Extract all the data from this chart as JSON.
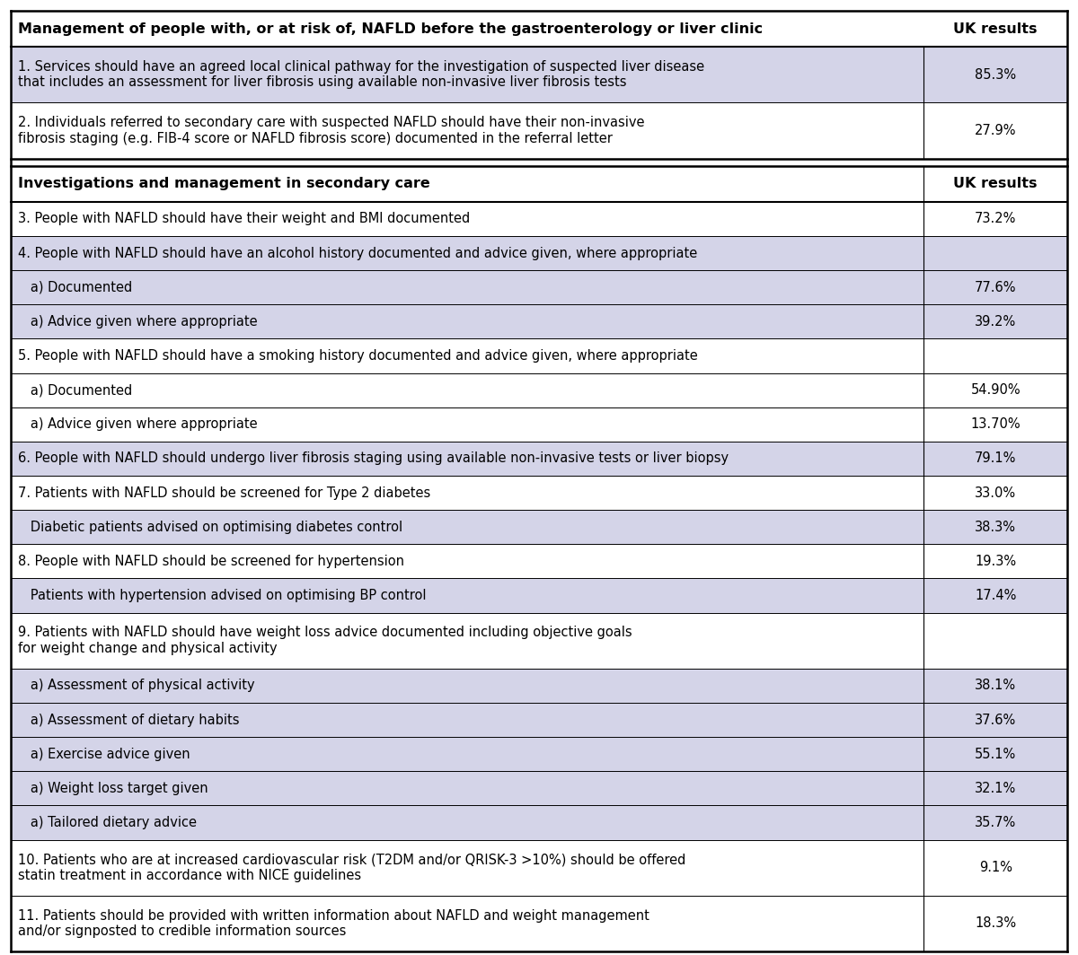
{
  "section1_header": "Management of people with, or at risk of, NAFLD before the gastroenterology or liver clinic",
  "section2_header": "Investigations and management in secondary care",
  "col_header": "UK results",
  "rows": [
    {
      "text": "1. Services should have an agreed local clinical pathway for the investigation of suspected liver disease\nthat includes an assessment for liver fibrosis using available non-invasive liver fibrosis tests",
      "value": "85.3%",
      "shaded": true,
      "lines": 2
    },
    {
      "text": "2. Individuals referred to secondary care with suspected NAFLD should have their non-invasive\nfibrosis staging (e.g. FIB-4 score or NAFLD fibrosis score) documented in the referral letter",
      "value": "27.9%",
      "shaded": false,
      "lines": 2
    },
    {
      "text": "3. People with NAFLD should have their weight and BMI documented",
      "value": "73.2%",
      "shaded": false,
      "lines": 1
    },
    {
      "text": "4. People with NAFLD should have an alcohol history documented and advice given, where appropriate",
      "value": "",
      "shaded": true,
      "lines": 1
    },
    {
      "text": "   a) Documented",
      "value": "77.6%",
      "shaded": true,
      "lines": 1
    },
    {
      "text": "   a) Advice given where appropriate",
      "value": "39.2%",
      "shaded": true,
      "lines": 1
    },
    {
      "text": "5. People with NAFLD should have a smoking history documented and advice given, where appropriate",
      "value": "",
      "shaded": false,
      "lines": 1
    },
    {
      "text": "   a) Documented",
      "value": "54.90%",
      "shaded": false,
      "lines": 1
    },
    {
      "text": "   a) Advice given where appropriate",
      "value": "13.70%",
      "shaded": false,
      "lines": 1
    },
    {
      "text": "6. People with NAFLD should undergo liver fibrosis staging using available non-invasive tests or liver biopsy",
      "value": "79.1%",
      "shaded": true,
      "lines": 1
    },
    {
      "text": "7. Patients with NAFLD should be screened for Type 2 diabetes",
      "value": "33.0%",
      "shaded": false,
      "lines": 1
    },
    {
      "text": "   Diabetic patients advised on optimising diabetes control",
      "value": "38.3%",
      "shaded": true,
      "lines": 1
    },
    {
      "text": "8. People with NAFLD should be screened for hypertension",
      "value": "19.3%",
      "shaded": false,
      "lines": 1
    },
    {
      "text": "   Patients with hypertension advised on optimising BP control",
      "value": "17.4%",
      "shaded": true,
      "lines": 1
    },
    {
      "text": "9. Patients with NAFLD should have weight loss advice documented including objective goals\nfor weight change and physical activity",
      "value": "",
      "shaded": false,
      "lines": 2
    },
    {
      "text": "   a) Assessment of physical activity",
      "value": "38.1%",
      "shaded": true,
      "lines": 1
    },
    {
      "text": "   a) Assessment of dietary habits",
      "value": "37.6%",
      "shaded": true,
      "lines": 1
    },
    {
      "text": "   a) Exercise advice given",
      "value": "55.1%",
      "shaded": true,
      "lines": 1
    },
    {
      "text": "   a) Weight loss target given",
      "value": "32.1%",
      "shaded": true,
      "lines": 1
    },
    {
      "text": "   a) Tailored dietary advice",
      "value": "35.7%",
      "shaded": true,
      "lines": 1
    },
    {
      "text": "10. Patients who are at increased cardiovascular risk (T2DM and/or QRISK-3 >10%) should be offered\nstatin treatment in accordance with NICE guidelines",
      "value": "9.1%",
      "shaded": false,
      "lines": 2
    },
    {
      "text": "11. Patients should be provided with written information about NAFLD and weight management\nand/or signposted to credible information sources",
      "value": "18.3%",
      "shaded": false,
      "lines": 2
    }
  ],
  "shaded_color": "#d4d4e8",
  "white_color": "#ffffff",
  "border_color": "#000000",
  "text_color": "#000000",
  "font_size": 10.5,
  "header_font_size": 11.5,
  "fig_width": 12.0,
  "fig_height": 10.64,
  "dpi": 100
}
